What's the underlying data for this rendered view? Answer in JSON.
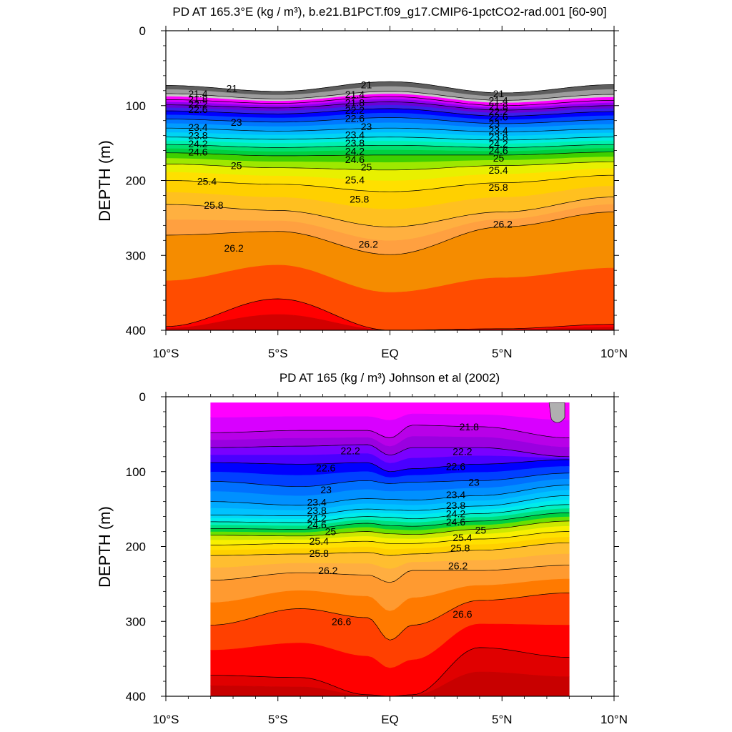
{
  "chart_data": [
    {
      "type": "heatmap",
      "title": "PD AT 165.3°E (kg / m³), b.e21.B1PCT.f09_g17.CMIP6-1pctCO2-rad.001 [60-90]",
      "ylabel": "DEPTH (m)",
      "xlabel": "",
      "xlim": [
        -10,
        10
      ],
      "ylim": [
        400,
        0
      ],
      "x_ticks": [
        -10,
        -5,
        0,
        5,
        10
      ],
      "x_tick_labels": [
        "10°S",
        "5°S",
        "EQ",
        "5°N",
        "10°N"
      ],
      "y_ticks": [
        0,
        100,
        200,
        300,
        400
      ],
      "y_tick_labels": [
        "0",
        "100",
        "200",
        "300",
        "400"
      ],
      "data_x_range": [
        -10,
        10
      ],
      "contours": [
        {
          "level": 21.0,
          "x": [
            -10,
            -5,
            0,
            5,
            10
          ],
          "depth": [
            73,
            81,
            68,
            83,
            72
          ]
        },
        {
          "level": 21.4,
          "x": [
            -10,
            -5,
            0,
            5,
            10
          ],
          "depth": [
            84,
            91,
            81,
            93,
            85
          ]
        },
        {
          "level": 21.8,
          "x": [
            -10,
            -5,
            0,
            5,
            10
          ],
          "depth": [
            92,
            97,
            88,
            100,
            93
          ]
        },
        {
          "level": 22.2,
          "x": [
            -10,
            -5,
            0,
            5,
            10
          ],
          "depth": [
            99,
            103,
            95,
            106,
            100
          ]
        },
        {
          "level": 22.6,
          "x": [
            -10,
            -5,
            0,
            5,
            10
          ],
          "depth": [
            107,
            111,
            104,
            114,
            108
          ]
        },
        {
          "level": 23.0,
          "x": [
            -10,
            -5,
            0,
            5,
            10
          ],
          "depth": [
            118,
            122,
            116,
            124,
            119
          ]
        },
        {
          "level": 23.4,
          "x": [
            -10,
            -5,
            0,
            5,
            10
          ],
          "depth": [
            130,
            134,
            130,
            135,
            131
          ]
        },
        {
          "level": 23.8,
          "x": [
            -10,
            -5,
            0,
            5,
            10
          ],
          "depth": [
            142,
            145,
            142,
            146,
            142
          ]
        },
        {
          "level": 24.2,
          "x": [
            -10,
            -5,
            0,
            5,
            10
          ],
          "depth": [
            152,
            156,
            153,
            156,
            152
          ]
        },
        {
          "level": 24.6,
          "x": [
            -10,
            -5,
            0,
            5,
            10
          ],
          "depth": [
            163,
            167,
            166,
            166,
            162
          ]
        },
        {
          "level": 25.0,
          "x": [
            -10,
            -5,
            0,
            5,
            10
          ],
          "depth": [
            178,
            183,
            186,
            180,
            175
          ]
        },
        {
          "level": 25.4,
          "x": [
            -10,
            -5,
            0,
            5,
            10
          ],
          "depth": [
            200,
            205,
            215,
            203,
            193
          ]
        },
        {
          "level": 25.8,
          "x": [
            -10,
            -5,
            0,
            5,
            10
          ],
          "depth": [
            232,
            240,
            262,
            242,
            222
          ]
        },
        {
          "level": 26.2,
          "x": [
            -10,
            -5,
            0,
            5,
            10
          ],
          "depth": [
            273,
            268,
            299,
            262,
            242
          ]
        },
        {
          "level": 26.6,
          "x": [
            -10,
            -5,
            0,
            5,
            10
          ],
          "depth": [
            395,
            358,
            400,
            398,
            392
          ]
        }
      ],
      "contour_labels": [
        {
          "text": "21",
          "x": -7.3,
          "depth": 77
        },
        {
          "text": "21.4",
          "x": -9.0,
          "depth": 84
        },
        {
          "text": "21.8",
          "x": -9.0,
          "depth": 91
        },
        {
          "text": "22.2",
          "x": -9.0,
          "depth": 98
        },
        {
          "text": "22.6",
          "x": -9.0,
          "depth": 105
        },
        {
          "text": "23",
          "x": -7.1,
          "depth": 122
        },
        {
          "text": "23.4",
          "x": -9.0,
          "depth": 129
        },
        {
          "text": "23.8",
          "x": -9.0,
          "depth": 140
        },
        {
          "text": "24.2",
          "x": -9.0,
          "depth": 151
        },
        {
          "text": "24.6",
          "x": -9.0,
          "depth": 162
        },
        {
          "text": "25",
          "x": -7.1,
          "depth": 180
        },
        {
          "text": "25.4",
          "x": -8.6,
          "depth": 201
        },
        {
          "text": "25.8",
          "x": -8.3,
          "depth": 233
        },
        {
          "text": "26.2",
          "x": -7.4,
          "depth": 290
        },
        {
          "text": "21",
          "x": -1.3,
          "depth": 72
        },
        {
          "text": "21.4",
          "x": -2.0,
          "depth": 85
        },
        {
          "text": "21.8",
          "x": -2.0,
          "depth": 96
        },
        {
          "text": "22.2",
          "x": -2.0,
          "depth": 106
        },
        {
          "text": "22.6",
          "x": -2.0,
          "depth": 117
        },
        {
          "text": "23",
          "x": -1.3,
          "depth": 128
        },
        {
          "text": "23.4",
          "x": -2.0,
          "depth": 139
        },
        {
          "text": "23.8",
          "x": -2.0,
          "depth": 150
        },
        {
          "text": "24.2",
          "x": -2.0,
          "depth": 161
        },
        {
          "text": "24.6",
          "x": -2.0,
          "depth": 172
        },
        {
          "text": "25",
          "x": -1.3,
          "depth": 182
        },
        {
          "text": "25.4",
          "x": -2.0,
          "depth": 199
        },
        {
          "text": "25.8",
          "x": -1.8,
          "depth": 225
        },
        {
          "text": "26.2",
          "x": -1.4,
          "depth": 285
        },
        {
          "text": "21",
          "x": 4.6,
          "depth": 84
        },
        {
          "text": "21.4",
          "x": 4.4,
          "depth": 93
        },
        {
          "text": "21.8",
          "x": 4.4,
          "depth": 101
        },
        {
          "text": "22.2",
          "x": 4.4,
          "depth": 108
        },
        {
          "text": "22.6",
          "x": 4.4,
          "depth": 115
        },
        {
          "text": "23",
          "x": 4.4,
          "depth": 124
        },
        {
          "text": "23.4",
          "x": 4.4,
          "depth": 133
        },
        {
          "text": "23.8",
          "x": 4.4,
          "depth": 142
        },
        {
          "text": "24.2",
          "x": 4.4,
          "depth": 151
        },
        {
          "text": "24.6",
          "x": 4.4,
          "depth": 160
        },
        {
          "text": "25",
          "x": 4.6,
          "depth": 170
        },
        {
          "text": "25.4",
          "x": 4.4,
          "depth": 186
        },
        {
          "text": "25.8",
          "x": 4.4,
          "depth": 209
        },
        {
          "text": "26.2",
          "x": 4.6,
          "depth": 258
        }
      ]
    },
    {
      "type": "heatmap",
      "title": "PD AT 165 (kg / m³) Johnson et al (2002)",
      "ylabel": "DEPTH (m)",
      "xlabel": "",
      "xlim": [
        -10,
        10
      ],
      "ylim": [
        400,
        0
      ],
      "x_ticks": [
        -10,
        -5,
        0,
        5,
        10
      ],
      "x_tick_labels": [
        "10°S",
        "5°S",
        "EQ",
        "5°N",
        "10°N"
      ],
      "y_ticks": [
        0,
        100,
        200,
        300,
        400
      ],
      "y_tick_labels": [
        "0",
        "100",
        "200",
        "300",
        "400"
      ],
      "data_x_range": [
        -8,
        8
      ],
      "contours": [
        {
          "level": 21.8,
          "x": [
            -8,
            -4,
            -1,
            0,
            1,
            4,
            8
          ],
          "depth": [
            48,
            45,
            45,
            55,
            38,
            40,
            55
          ]
        },
        {
          "level": 22.2,
          "x": [
            -8,
            -4,
            -1,
            0,
            1,
            4,
            8
          ],
          "depth": [
            68,
            66,
            64,
            78,
            68,
            68,
            80
          ]
        },
        {
          "level": 22.6,
          "x": [
            -8,
            -4,
            -1,
            0,
            1,
            4,
            8
          ],
          "depth": [
            88,
            90,
            88,
            100,
            96,
            90,
            84
          ]
        },
        {
          "level": 23.0,
          "x": [
            -8,
            -4,
            -1,
            0,
            1,
            4,
            8
          ],
          "depth": [
            113,
            120,
            112,
            116,
            114,
            112,
            102
          ]
        },
        {
          "level": 23.4,
          "x": [
            -8,
            -4,
            -1,
            0,
            1,
            4,
            8
          ],
          "depth": [
            140,
            145,
            136,
            137,
            138,
            132,
            118
          ]
        },
        {
          "level": 23.8,
          "x": [
            -8,
            -4,
            -1,
            0,
            1,
            4,
            8
          ],
          "depth": [
            158,
            159,
            150,
            151,
            152,
            146,
            132
          ]
        },
        {
          "level": 24.2,
          "x": [
            -8,
            -4,
            -1,
            0,
            1,
            4,
            8
          ],
          "depth": [
            167,
            168,
            160,
            161,
            163,
            156,
            144
          ]
        },
        {
          "level": 24.6,
          "x": [
            -8,
            -4,
            -1,
            0,
            1,
            4,
            8
          ],
          "depth": [
            176,
            177,
            169,
            172,
            173,
            166,
            155
          ]
        },
        {
          "level": 25.0,
          "x": [
            -8,
            -4,
            -1,
            0,
            1,
            4,
            8
          ],
          "depth": [
            185,
            186,
            180,
            183,
            184,
            177,
            166
          ]
        },
        {
          "level": 25.4,
          "x": [
            -8,
            -4,
            -1,
            0,
            1,
            4,
            8
          ],
          "depth": [
            198,
            196,
            193,
            196,
            196,
            190,
            180
          ]
        },
        {
          "level": 25.8,
          "x": [
            -8,
            -4,
            -1,
            0,
            1,
            4,
            8
          ],
          "depth": [
            212,
            210,
            208,
            212,
            210,
            205,
            195
          ]
        },
        {
          "level": 26.2,
          "x": [
            -8,
            -4,
            -1,
            0,
            1,
            4,
            8
          ],
          "depth": [
            245,
            235,
            238,
            248,
            232,
            232,
            225
          ]
        },
        {
          "level": 26.6,
          "x": [
            -8,
            -4,
            -1,
            0,
            1,
            4,
            8
          ],
          "depth": [
            305,
            283,
            295,
            325,
            305,
            272,
            262
          ]
        },
        {
          "level": 26.8,
          "x": [
            -8,
            -4,
            -1,
            0,
            1,
            4,
            8
          ],
          "depth": [
            372,
            375,
            398,
            400,
            398,
            335,
            348
          ]
        }
      ],
      "contour_labels": [
        {
          "text": "21.8",
          "x": 3.1,
          "depth": 40
        },
        {
          "text": "22.2",
          "x": -2.2,
          "depth": 72
        },
        {
          "text": "22.2",
          "x": 2.8,
          "depth": 73
        },
        {
          "text": "22.6",
          "x": -3.3,
          "depth": 95
        },
        {
          "text": "22.6",
          "x": 2.5,
          "depth": 93
        },
        {
          "text": "23",
          "x": -3.1,
          "depth": 124
        },
        {
          "text": "23",
          "x": 3.5,
          "depth": 114
        },
        {
          "text": "23.4",
          "x": -3.7,
          "depth": 141
        },
        {
          "text": "23.4",
          "x": 2.5,
          "depth": 131
        },
        {
          "text": "23.8",
          "x": -3.7,
          "depth": 152
        },
        {
          "text": "23.8",
          "x": 2.5,
          "depth": 145
        },
        {
          "text": "24.2",
          "x": -3.7,
          "depth": 162
        },
        {
          "text": "24.2",
          "x": 2.5,
          "depth": 156
        },
        {
          "text": "24.6",
          "x": -3.7,
          "depth": 171
        },
        {
          "text": "24.6",
          "x": 2.5,
          "depth": 167
        },
        {
          "text": "25",
          "x": -2.9,
          "depth": 180
        },
        {
          "text": "25",
          "x": 3.8,
          "depth": 178
        },
        {
          "text": "25.4",
          "x": -3.6,
          "depth": 193
        },
        {
          "text": "25.4",
          "x": 2.8,
          "depth": 188
        },
        {
          "text": "25.8",
          "x": -3.6,
          "depth": 209
        },
        {
          "text": "25.8",
          "x": 2.7,
          "depth": 202
        },
        {
          "text": "26.2",
          "x": -3.2,
          "depth": 232
        },
        {
          "text": "26.2",
          "x": 2.6,
          "depth": 226
        },
        {
          "text": "26.6",
          "x": -2.6,
          "depth": 300
        },
        {
          "text": "26.6",
          "x": 2.8,
          "depth": 290
        }
      ]
    }
  ],
  "colors": {
    "model_palette": [
      "#5e5e5e",
      "#9d9d9d",
      "#c8c8c8",
      "#ff00ff",
      "#d000ff",
      "#9000ee",
      "#6a00d8",
      "#3a20e8",
      "#0000ff",
      "#0044ff",
      "#0078ff",
      "#009cff",
      "#00b9ff",
      "#00d4f4",
      "#00ece0",
      "#00f0b0",
      "#00e070",
      "#00d040",
      "#3ed000",
      "#9ee800",
      "#e8f000",
      "#ffe000",
      "#ffd000",
      "#ffc020",
      "#ffb040",
      "#ffa040",
      "#f58c00",
      "#ff4c00",
      "#ff0000",
      "#d20000"
    ],
    "obs_palette": [
      "#ff00ff",
      "#d800ff",
      "#b800e8",
      "#9a00e0",
      "#7a00ff",
      "#4a00ff",
      "#0000ff",
      "#0040ff",
      "#0070ff",
      "#0090ff",
      "#00aaff",
      "#00c2ff",
      "#00d8f8",
      "#00ecec",
      "#00f0c0",
      "#00e080",
      "#00d040",
      "#6ae000",
      "#cce800",
      "#f8f000",
      "#ffe000",
      "#ffd000",
      "#ffbe30",
      "#ffae40",
      "#ff9a30",
      "#ff7a00",
      "#ff4000",
      "#ff0000",
      "#e00000",
      "#c80000"
    ],
    "missing": "#b0b0b0"
  }
}
